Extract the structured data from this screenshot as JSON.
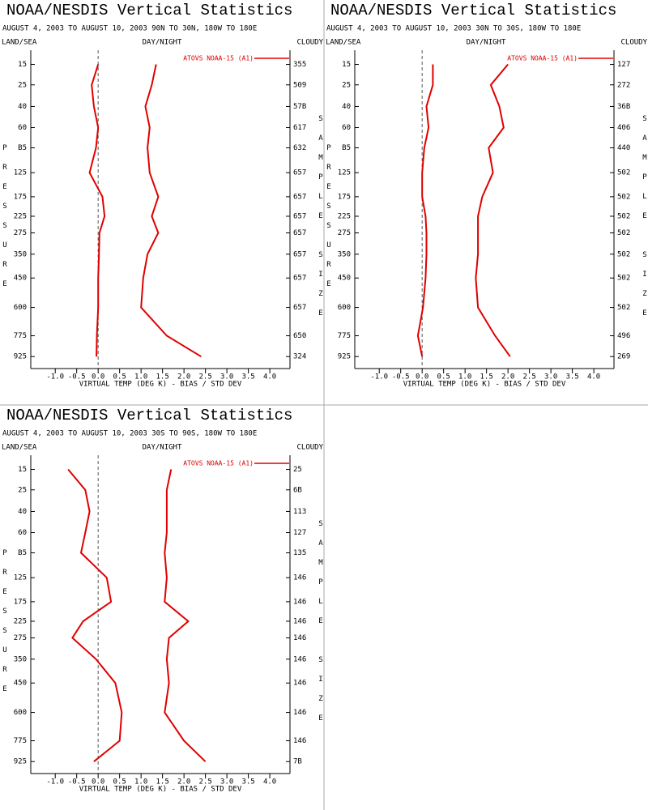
{
  "chart_data": [
    {
      "type": "line",
      "title": "NOAA/NESDIS Vertical Statistics",
      "subtitle": "AUGUST 4, 2003 TO AUGUST 10, 2003  90N TO 30N, 180W TO 180E",
      "left_label": "LAND/SEA",
      "center_label": "DAY/NIGHT",
      "right_label": "CLOUDY",
      "legend_label": "ATOVS NOAA-15 (A1)",
      "xlabel": "VIRTUAL TEMP (DEG K) - BIAS / STD DEV",
      "ylabel": "PRESSURE",
      "y2label": "SAMPLE SIZE",
      "y": [
        15,
        25,
        40,
        60,
        85,
        125,
        175,
        225,
        275,
        350,
        450,
        600,
        775,
        925
      ],
      "sample_sizes": [
        "355",
        "509",
        "57B",
        "617",
        "632",
        "657",
        "657",
        "657",
        "657",
        "657",
        "657",
        "657",
        "650",
        "324"
      ],
      "series": [
        {
          "color": "#e00000",
          "values": [
            0.0,
            -0.15,
            -0.1,
            0.0,
            -0.05,
            -0.2,
            0.1,
            0.15,
            0.03,
            0.02,
            0.0,
            0.0,
            -0.03,
            -0.04
          ]
        },
        {
          "color": "#e00000",
          "values": [
            1.35,
            1.25,
            1.1,
            1.2,
            1.15,
            1.2,
            1.4,
            1.25,
            1.4,
            1.15,
            1.05,
            1.0,
            1.6,
            2.4
          ]
        }
      ],
      "xlim": [
        -1.57,
        4.47
      ],
      "xticks": [
        {
          "value": -1,
          "label": "-1.0"
        },
        -0.5,
        {
          "value": 0,
          "label": "0.0"
        },
        0.5,
        {
          "value": 1,
          "label": "1.0"
        },
        1.5,
        {
          "value": 2,
          "label": "2.0"
        },
        2.5,
        {
          "value": 3,
          "label": "3.0"
        },
        3.5,
        {
          "value": 4,
          "label": "4.0"
        }
      ],
      "ylim": [
        10,
        1020
      ],
      "y_reversed": true,
      "y_scale_exponent": 0.286,
      "yticks": [
        15,
        25,
        40,
        60,
        {
          "value": 85,
          "label": "B5"
        },
        125,
        175,
        225,
        275,
        350,
        450,
        600,
        775,
        925
      ]
    },
    {
      "type": "line",
      "title": "NOAA/NESDIS Vertical Statistics",
      "subtitle": "AUGUST 4, 2003 TO AUGUST 10, 2003  30N TO 30S, 180W TO 180E",
      "left_label": "LAND/SEA",
      "center_label": "DAY/NIGHT",
      "right_label": "CLOUDY",
      "legend_label": "ATOVS NOAA-15 (A1)",
      "xlabel": "VIRTUAL TEMP (DEG K) - BIAS / STD DEV",
      "ylabel": "PRESSURE",
      "y2label": "SAMPLE SIZE",
      "y": [
        15,
        25,
        40,
        60,
        85,
        125,
        175,
        225,
        275,
        350,
        450,
        600,
        775,
        925
      ],
      "sample_sizes": [
        "127",
        "272",
        "36B",
        "406",
        "440",
        "502",
        "502",
        "502",
        "502",
        "502",
        "502",
        "502",
        "496",
        "269"
      ],
      "series": [
        {
          "color": "#e00000",
          "values": [
            0.25,
            0.25,
            0.1,
            0.15,
            0.05,
            0.0,
            0.0,
            0.08,
            0.1,
            0.1,
            0.08,
            0.02,
            -0.1,
            0.0
          ]
        },
        {
          "color": "#e00000",
          "values": [
            2.0,
            1.6,
            1.8,
            1.9,
            1.55,
            1.65,
            1.4,
            1.3,
            1.3,
            1.3,
            1.25,
            1.3,
            1.7,
            2.05
          ]
        }
      ],
      "xlim": [
        -1.57,
        4.47
      ],
      "xticks": [
        {
          "value": -1,
          "label": "-1.0"
        },
        -0.5,
        {
          "value": 0,
          "label": "0.0"
        },
        0.5,
        {
          "value": 1,
          "label": "1.0"
        },
        1.5,
        {
          "value": 2,
          "label": "2.0"
        },
        2.5,
        {
          "value": 3,
          "label": "3.0"
        },
        3.5,
        {
          "value": 4,
          "label": "4.0"
        }
      ],
      "ylim": [
        10,
        1020
      ],
      "y_reversed": true,
      "y_scale_exponent": 0.286,
      "yticks": [
        15,
        25,
        40,
        60,
        {
          "value": 85,
          "label": "B5"
        },
        125,
        175,
        225,
        275,
        350,
        450,
        600,
        775,
        925
      ]
    },
    {
      "type": "line",
      "title": "NOAA/NESDIS Vertical Statistics",
      "subtitle": "AUGUST 4, 2003 TO AUGUST 10, 2003  30S TO 90S, 180W TO 180E",
      "left_label": "LAND/SEA",
      "center_label": "DAY/NIGHT",
      "right_label": "CLOUDY",
      "legend_label": "ATOVS NOAA-15 (A1)",
      "xlabel": "VIRTUAL TEMP (DEG K) - BIAS / STD DEV",
      "ylabel": "PRESSURE",
      "y2label": "SAMPLE SIZE",
      "y": [
        15,
        25,
        40,
        60,
        85,
        125,
        175,
        225,
        275,
        350,
        450,
        600,
        775,
        925
      ],
      "sample_sizes": [
        "25",
        "6B",
        "113",
        "127",
        "135",
        "146",
        "146",
        "146",
        "146",
        "146",
        "146",
        "146",
        "146",
        "7B"
      ],
      "series": [
        {
          "color": "#e00000",
          "values": [
            -0.7,
            -0.3,
            -0.2,
            -0.3,
            -0.4,
            0.2,
            0.3,
            -0.35,
            -0.6,
            -0.05,
            0.4,
            0.55,
            0.5,
            -0.1
          ]
        },
        {
          "color": "#e00000",
          "values": [
            1.7,
            1.6,
            1.6,
            1.6,
            1.55,
            1.6,
            1.55,
            2.1,
            1.65,
            1.6,
            1.65,
            1.55,
            2.0,
            2.5
          ]
        }
      ],
      "xlim": [
        -1.57,
        4.47
      ],
      "xticks": [
        {
          "value": -1,
          "label": "-1.0"
        },
        -0.5,
        {
          "value": 0,
          "label": "0.0"
        },
        0.5,
        {
          "value": 1,
          "label": "1.0"
        },
        1.5,
        {
          "value": 2,
          "label": "2.0"
        },
        2.5,
        {
          "value": 3,
          "label": "3.0"
        },
        3.5,
        {
          "value": 4,
          "label": "4.0"
        }
      ],
      "ylim": [
        10,
        1020
      ],
      "y_reversed": true,
      "y_scale_exponent": 0.286,
      "yticks": [
        15,
        25,
        40,
        60,
        {
          "value": 85,
          "label": "B5"
        },
        125,
        175,
        225,
        275,
        350,
        450,
        600,
        775,
        925
      ]
    }
  ]
}
